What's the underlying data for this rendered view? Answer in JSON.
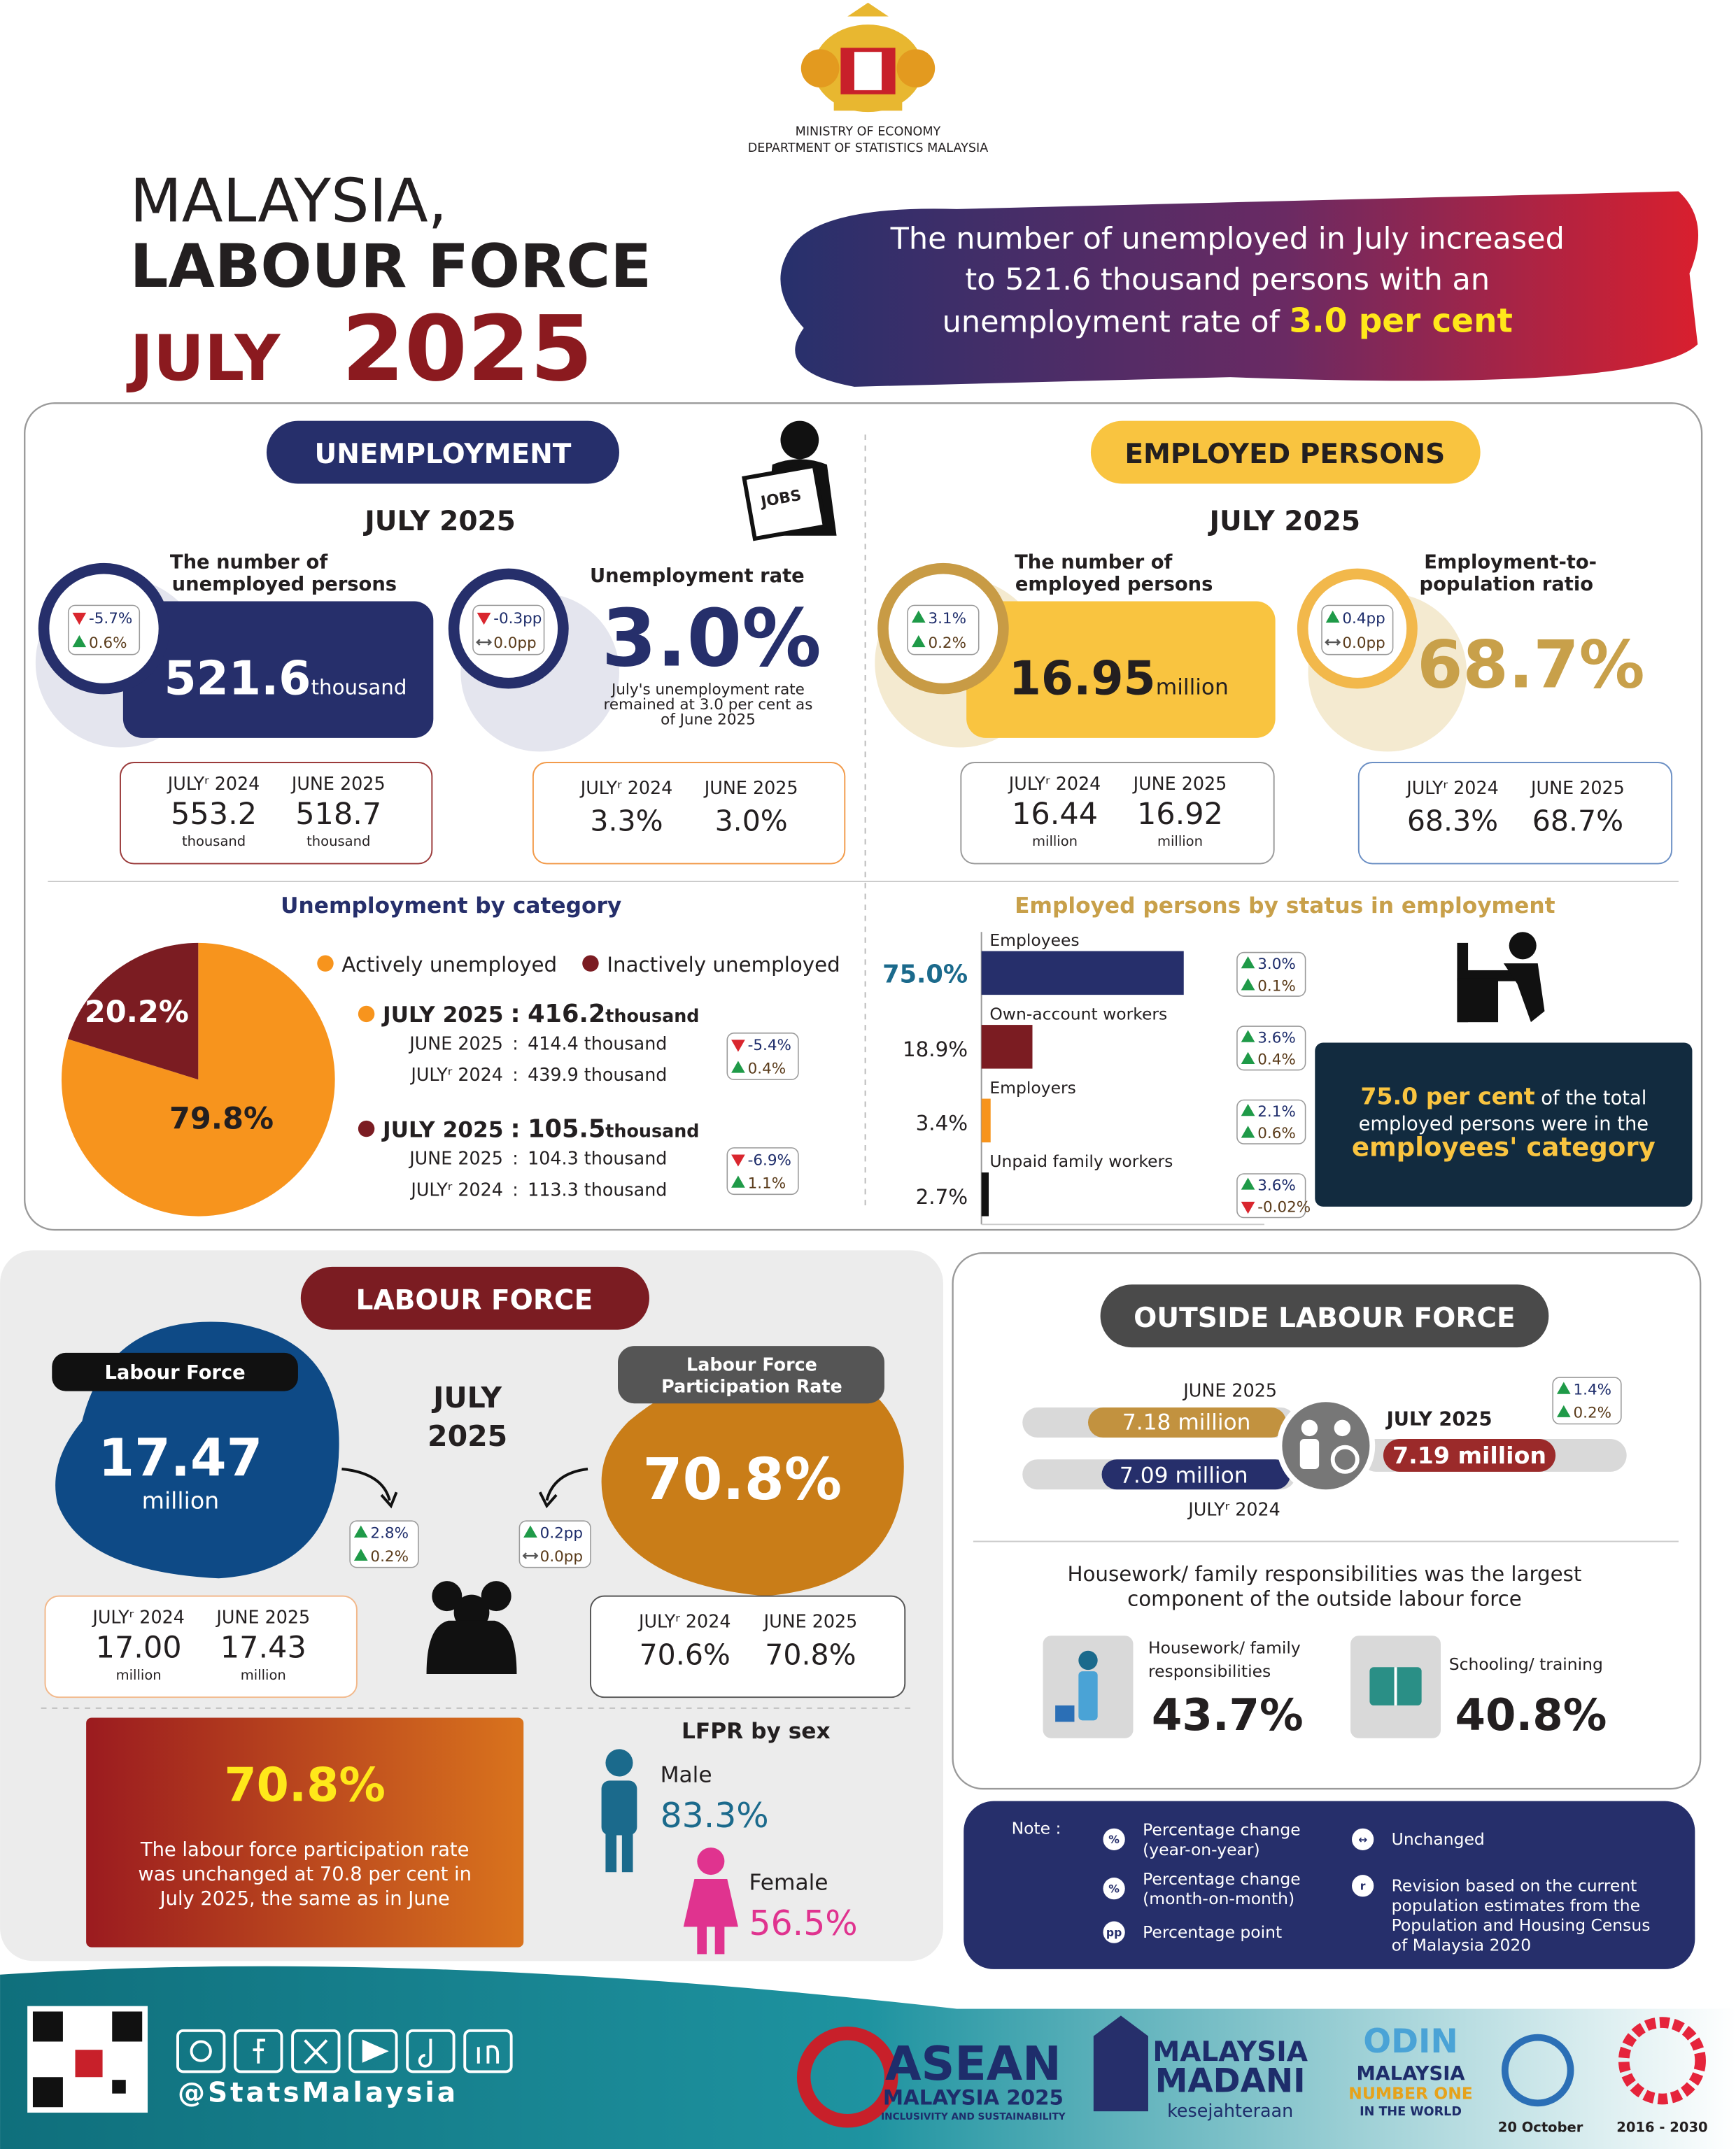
{
  "header": {
    "ministry": "MINISTRY OF ECONOMY",
    "department": "DEPARTMENT OF STATISTICS MALAYSIA",
    "title_line1": "MALAYSIA,",
    "title_line2": "LABOUR FORCE",
    "title_month": "JULY",
    "title_year": "2025",
    "headline": [
      "The number of unemployed in July increased",
      "to 521.6 thousand persons with an",
      "unemployment rate of "
    ],
    "headline_highlight": "3.0 per cent"
  },
  "unemployment": {
    "heading": "UNEMPLOYMENT",
    "period": "JULY 2025",
    "icon_text": "JOBS",
    "unemployed": {
      "label": [
        "The number of",
        "unemployed persons"
      ],
      "value": "521.6",
      "unit": "thousand",
      "change": {
        "yoy": "-5.7%",
        "mom": "0.6%"
      },
      "compare": [
        {
          "period": "JULYʳ 2024",
          "value": "553.2",
          "unit": "thousand"
        },
        {
          "period": "JUNE 2025",
          "value": "518.7",
          "unit": "thousand"
        }
      ]
    },
    "rate": {
      "label": "Unemployment rate",
      "value": "3.0%",
      "note": [
        "July's unemployment rate",
        "remained at 3.0 per cent as",
        "of June 2025"
      ],
      "change": {
        "yoy": "-0.3pp",
        "mom": "0.0pp"
      },
      "compare": [
        {
          "period": "JULYʳ 2024",
          "value": "3.3%"
        },
        {
          "period": "JUNE 2025",
          "value": "3.0%"
        }
      ]
    },
    "by_category": {
      "title": "Unemployment by category",
      "categories": [
        "Actively unemployed",
        "Inactively unemployed"
      ],
      "values": [
        79.8,
        20.2
      ],
      "value_labels": [
        "79.8%",
        "20.2%"
      ],
      "colors": [
        "#f7941d",
        "#7b1c22"
      ],
      "separator": ":",
      "details": [
        {
          "rows": [
            {
              "period": "JULY 2025",
              "value": "416.2",
              "unit": "thousand"
            },
            {
              "period": "JUNE 2025",
              "value": "414.4 thousand"
            },
            {
              "period": "JULYʳ 2024",
              "value": "439.9 thousand"
            }
          ],
          "change": {
            "yoy": "-5.4%",
            "mom": "0.4%"
          }
        },
        {
          "rows": [
            {
              "period": "JULY 2025",
              "value": "105.5",
              "unit": "thousand"
            },
            {
              "period": "JUNE 2025",
              "value": "104.3 thousand"
            },
            {
              "period": "JULYʳ 2024",
              "value": "113.3 thousand"
            }
          ],
          "change": {
            "yoy": "-6.9%",
            "mom": "1.1%"
          }
        }
      ]
    }
  },
  "employed": {
    "heading": "EMPLOYED PERSONS",
    "period": "JULY 2025",
    "persons": {
      "label": [
        "The number of",
        "employed persons"
      ],
      "value": "16.95",
      "unit": "million",
      "change": {
        "yoy": "3.1%",
        "mom": "0.2%"
      },
      "compare": [
        {
          "period": "JULYʳ 2024",
          "value": "16.44",
          "unit": "million"
        },
        {
          "period": "JUNE 2025",
          "value": "16.92",
          "unit": "million"
        }
      ]
    },
    "ratio": {
      "label": [
        "Employment-to-",
        "population ratio"
      ],
      "value": "68.7%",
      "change": {
        "yoy": "0.4pp",
        "mom": "0.0pp"
      },
      "compare": [
        {
          "period": "JULYʳ 2024",
          "value": "68.3%"
        },
        {
          "period": "JUNE 2025",
          "value": "68.7%"
        }
      ]
    },
    "by_status": {
      "title": "Employed persons by status in employment",
      "categories": [
        "Employees",
        "Own-account workers",
        "Employers",
        "Unpaid family workers"
      ],
      "values": [
        75.0,
        18.9,
        3.4,
        2.7
      ],
      "value_labels": [
        "75.0%",
        "18.9%",
        "3.4%",
        "2.7%"
      ],
      "colors": [
        "#262f6b",
        "#7b1c22",
        "#f7941d",
        "#111111"
      ],
      "changes": [
        {
          "yoy": "3.0%",
          "mom": "0.1%"
        },
        {
          "yoy": "3.6%",
          "mom": "0.4%"
        },
        {
          "yoy": "2.1%",
          "mom": "0.6%"
        },
        {
          "yoy": "3.6%",
          "mom": "-0.02%"
        }
      ],
      "highlight": {
        "value": "75.0 per cent",
        "text": [
          " of the total",
          "employed persons were in the"
        ],
        "emphasis": "employees' category"
      }
    }
  },
  "labour_force": {
    "heading": "LABOUR FORCE",
    "period": [
      "JULY",
      "2025"
    ],
    "total": {
      "label": "Labour Force",
      "value": "17.47",
      "unit": "million",
      "change": {
        "yoy": "2.8%",
        "mom": "0.2%"
      },
      "compare": [
        {
          "period": "JULYʳ 2024",
          "value": "17.00",
          "unit": "million"
        },
        {
          "period": "JUNE 2025",
          "value": "17.43",
          "unit": "million"
        }
      ]
    },
    "lfpr": {
      "label": [
        "Labour Force",
        "Participation Rate"
      ],
      "value": "70.8%",
      "change": {
        "yoy": "0.2pp",
        "mom": "0.0pp"
      },
      "compare": [
        {
          "period": "JULYʳ 2024",
          "value": "70.6%"
        },
        {
          "period": "JUNE 2025",
          "value": "70.8%"
        }
      ]
    },
    "summary": {
      "value": "70.8%",
      "text": [
        "The labour force participation rate",
        "was unchanged at 70.8 per cent in",
        "July 2025, the same as in June"
      ]
    },
    "by_sex": {
      "title": "LFPR by sex",
      "groups": [
        {
          "name": "Male",
          "value": "83.3%"
        },
        {
          "name": "Female",
          "value": "56.5%"
        }
      ]
    }
  },
  "outside": {
    "heading": "OUTSIDE LABOUR FORCE",
    "bars": [
      {
        "period": "JUNE 2025",
        "value": "7.18 million"
      },
      {
        "period": "JULY 2025",
        "value": "7.19 million"
      },
      {
        "period": "JULYʳ 2024",
        "value": "7.09 million"
      }
    ],
    "change": {
      "yoy": "1.4%",
      "mom": "0.2%"
    },
    "summary": [
      "Housework/ family responsibilities was the largest",
      "component of the outside labour force"
    ],
    "components": [
      {
        "label": [
          "Housework/ family",
          "responsibilities"
        ],
        "value": "43.7%"
      },
      {
        "label": [
          "Schooling/ training"
        ],
        "value": "40.8%"
      }
    ]
  },
  "note": {
    "title": "Note :",
    "items": [
      {
        "symbol": "%",
        "text": [
          "Percentage change",
          "(year-on-year)"
        ]
      },
      {
        "symbol": "%",
        "text": [
          "Percentage change",
          "(month-on-month)"
        ]
      },
      {
        "symbol": "pp",
        "text": [
          "Percentage point"
        ]
      },
      {
        "symbol": "↔",
        "text": [
          "Unchanged"
        ]
      },
      {
        "symbol": "r",
        "text": [
          "Revision based on the current",
          "population estimates from the",
          "Population and Housing Census",
          "of Malaysia 2020"
        ]
      }
    ]
  },
  "footer": {
    "handle": "@StatsMalaysia",
    "asean": [
      "ASEAN",
      "MALAYSIA 2025",
      "INCLUSIVITY AND SUSTAINABILITY"
    ],
    "madani": [
      "MALAYSIA",
      "MADANI",
      "kesejahteraan"
    ],
    "odin": [
      "ODIN",
      "MALAYSIA",
      "NUMBER ONE",
      "IN THE WORLD"
    ],
    "dates": [
      "20 October",
      "2016 - 2030"
    ]
  }
}
